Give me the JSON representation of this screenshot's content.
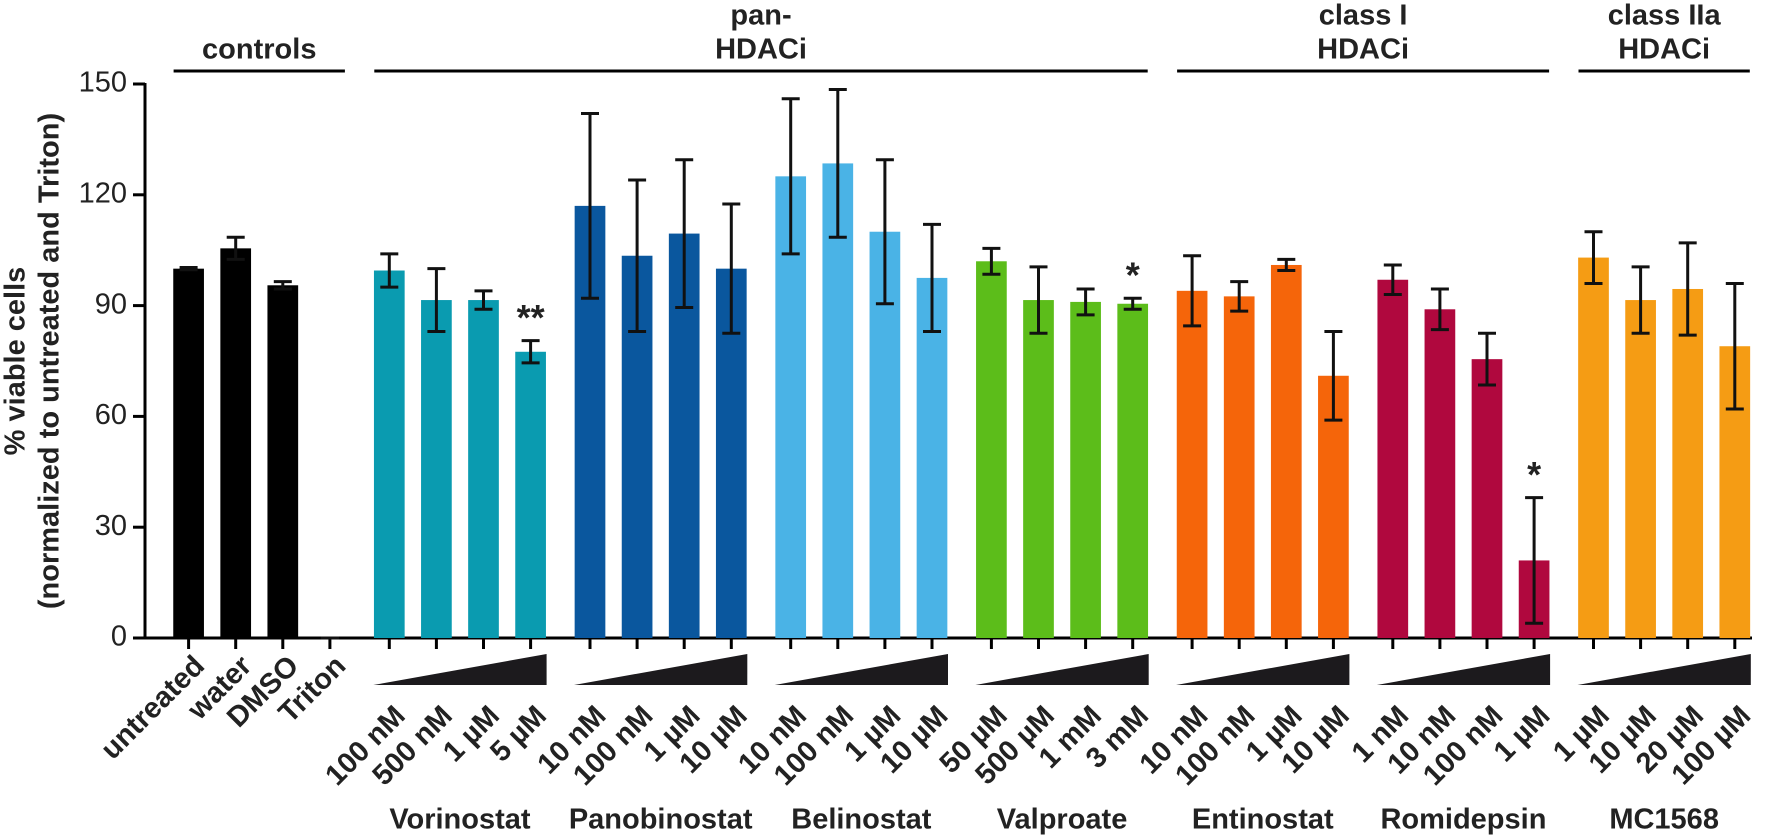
{
  "chart_data": {
    "type": "bar",
    "ylabel": [
      "% viable cells",
      "(normalized to untreated and Triton)"
    ],
    "ylim": [
      0,
      150
    ],
    "yticks": [
      0,
      30,
      60,
      90,
      120,
      150
    ],
    "classes": [
      {
        "label": [
          "controls"
        ],
        "drugs": [
          {
            "color": "#000000",
            "categories": [
              "untreated",
              "water",
              "DMSO",
              "Triton"
            ],
            "values": [
              100,
              105.5,
              95.5,
              0
            ],
            "errors": [
              0.3,
              3,
              1,
              0
            ],
            "annotations": [
              null,
              null,
              null,
              null
            ]
          }
        ]
      },
      {
        "label": [
          "pan-",
          "HDACi"
        ],
        "drugs": [
          {
            "name": "Vorinostat",
            "color": "#0a9bb0",
            "categories": [
              "100 nM",
              "500 nM",
              "1 µM",
              "5 µM"
            ],
            "values": [
              99.5,
              91.5,
              91.5,
              77.5
            ],
            "errors": [
              4.5,
              8.5,
              2.5,
              3
            ],
            "annotations": [
              null,
              null,
              null,
              "**"
            ]
          },
          {
            "name": "Panobinostat",
            "color": "#0a579e",
            "categories": [
              "10 nM",
              "100 nM",
              "1 µM",
              "10 µM"
            ],
            "values": [
              117,
              103.5,
              109.5,
              100
            ],
            "errors": [
              25,
              20.5,
              20,
              17.5
            ],
            "annotations": [
              null,
              null,
              null,
              null
            ]
          },
          {
            "name": "Belinostat",
            "color": "#4ab3e6",
            "categories": [
              "10 nM",
              "100 nM",
              "1 µM",
              "10 µM"
            ],
            "values": [
              125,
              128.5,
              110,
              97.5
            ],
            "errors": [
              21,
              20,
              19.5,
              14.5
            ],
            "annotations": [
              null,
              null,
              null,
              null
            ]
          },
          {
            "name": "Valproate",
            "color": "#5cbd1a",
            "categories": [
              "50 µM",
              "500 µM",
              "1 mM",
              "3 mM"
            ],
            "values": [
              102,
              91.5,
              91,
              90.5
            ],
            "errors": [
              3.5,
              9,
              3.5,
              1.5
            ],
            "annotations": [
              null,
              null,
              null,
              "*"
            ]
          }
        ]
      },
      {
        "label": [
          "class I",
          "HDACi"
        ],
        "drugs": [
          {
            "name": "Entinostat",
            "color": "#f5650a",
            "categories": [
              "10 nM",
              "100 nM",
              "1 µM",
              "10 µM"
            ],
            "values": [
              94,
              92.5,
              101,
              71
            ],
            "errors": [
              9.5,
              4,
              1.5,
              12
            ],
            "annotations": [
              null,
              null,
              null,
              null
            ]
          },
          {
            "name": "Romidepsin",
            "color": "#b0083e",
            "categories": [
              "1 nM",
              "10 nM",
              "100 nM",
              "1 µM"
            ],
            "values": [
              97,
              89,
              75.5,
              21
            ],
            "errors": [
              4,
              5.5,
              7,
              17
            ],
            "annotations": [
              null,
              null,
              null,
              "*"
            ]
          }
        ]
      },
      {
        "label": [
          "class IIa",
          "HDACi"
        ],
        "drugs": [
          {
            "name": "MC1568",
            "color": "#f59c14",
            "categories": [
              "1 µM",
              "10 µM",
              "20 µM",
              "100 µM"
            ],
            "values": [
              103,
              91.5,
              94.5,
              79
            ],
            "errors": [
              7,
              9,
              12.5,
              17
            ],
            "annotations": [
              null,
              null,
              null,
              null
            ]
          }
        ]
      }
    ]
  }
}
